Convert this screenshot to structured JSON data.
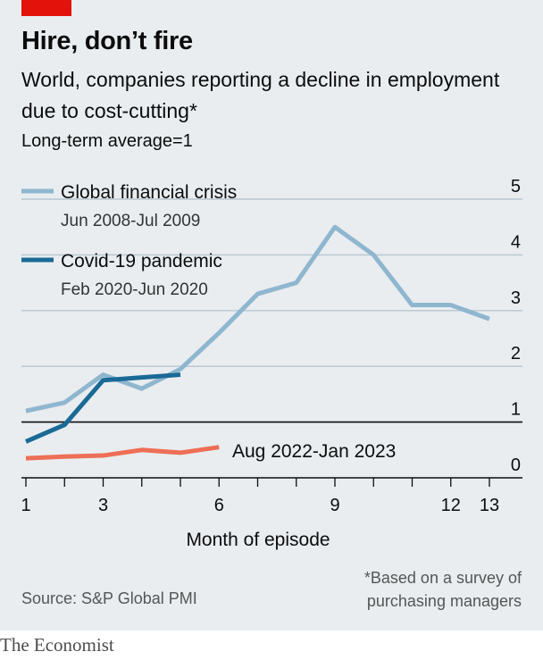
{
  "header": {
    "title": "Hire, don’t fire",
    "subtitle": "World, companies reporting a decline in employment due to cost-cutting*",
    "note": "Long-term average=1"
  },
  "footer": {
    "footnote": "*Based on a survey of purchasing managers",
    "source": "Source: S&P Global PMI",
    "brand": "The Economist"
  },
  "colors": {
    "gfc": "#8fb6cf",
    "covid": "#1a6a96",
    "recent": "#ee6f57",
    "brand_red": "#e3120b"
  },
  "chart_data": {
    "type": "line",
    "xlabel": "Month of episode",
    "ylabel": "",
    "x_ticks": [
      1,
      3,
      6,
      9,
      12,
      13
    ],
    "y_ticks": [
      0,
      1,
      2,
      3,
      4,
      5
    ],
    "xlim": [
      1,
      13
    ],
    "ylim": [
      0,
      5
    ],
    "grid": true,
    "legend_position": "top-left",
    "series": [
      {
        "name": "Global financial crisis",
        "period": "Jun 2008-Jul 2009",
        "color": "#8fb6cf",
        "x": [
          1,
          2,
          3,
          4,
          5,
          6,
          7,
          8,
          9,
          10,
          11,
          12,
          13
        ],
        "values": [
          1.2,
          1.35,
          1.85,
          1.6,
          1.95,
          2.6,
          3.3,
          3.5,
          4.5,
          4.0,
          3.1,
          3.1,
          2.85
        ]
      },
      {
        "name": "Covid-19 pandemic",
        "period": "Feb 2020-Jun 2020",
        "color": "#1a6a96",
        "x": [
          1,
          2,
          3,
          4,
          5
        ],
        "values": [
          0.65,
          0.95,
          1.75,
          1.8,
          1.85
        ]
      },
      {
        "name": "Aug 2022-Jan 2023",
        "color": "#ee6f57",
        "x": [
          1,
          2,
          3,
          4,
          5,
          6
        ],
        "values": [
          0.35,
          0.38,
          0.4,
          0.5,
          0.45,
          0.55
        ]
      }
    ]
  }
}
